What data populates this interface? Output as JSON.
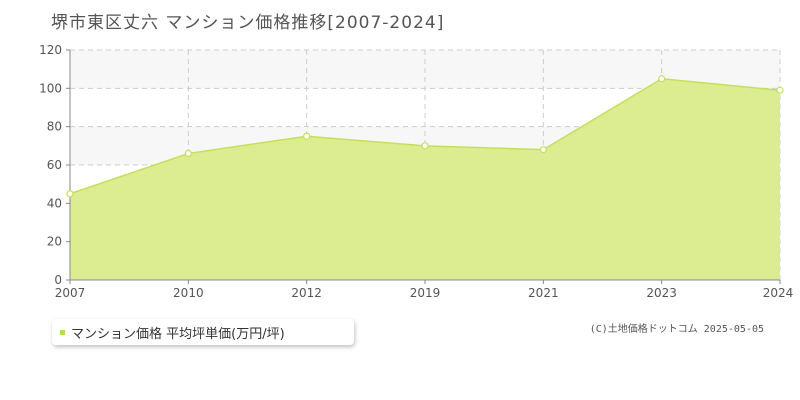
{
  "title": "堺市東区丈六 マンション価格推移[2007-2024]",
  "legend_label": "マンション価格 平均坪単価(万円/坪)",
  "copyright": "(C)土地価格ドットコム 2025-05-05",
  "colors": {
    "area_fill": "#dbec91",
    "area_line": "#c4e05a",
    "marker_fill": "#ffffff",
    "grid": "#cccccc",
    "axis": "#888888",
    "band": "#f7f7f7"
  },
  "chart_data": {
    "type": "area",
    "categories": [
      "2007",
      "2010",
      "2012",
      "2019",
      "2021",
      "2023",
      "2024"
    ],
    "series": [
      {
        "name": "マンション価格 平均坪単価(万円/坪)",
        "values": [
          45,
          66,
          75,
          70,
          68,
          105,
          99
        ]
      }
    ],
    "ylim": [
      0,
      120
    ],
    "yticks": [
      0,
      20,
      40,
      60,
      80,
      100,
      120
    ],
    "grid": true,
    "legend_position": "bottom-left"
  }
}
